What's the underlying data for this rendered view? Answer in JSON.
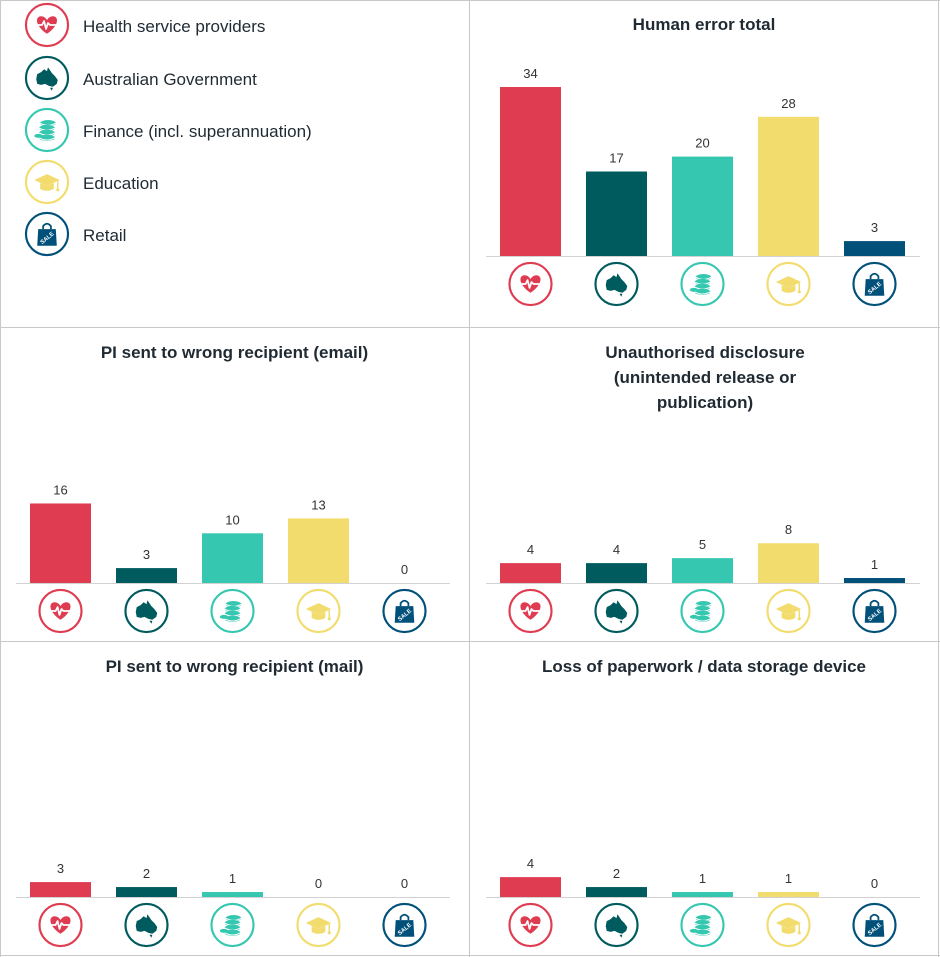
{
  "legend": [
    {
      "label": "Health service providers",
      "icon": "heart-icon",
      "color": "#e03c51"
    },
    {
      "label": "Australian Government",
      "icon": "australia-map-icon",
      "color": "#005b5e"
    },
    {
      "label": "Finance (incl. superannuation)",
      "icon": "coins-icon",
      "color": "#36c7b0"
    },
    {
      "label": "Education",
      "icon": "graduation-cap-icon",
      "color": "#f2dc6e"
    },
    {
      "label": "Retail",
      "icon": "sale-bag-icon",
      "color": "#00507a"
    }
  ],
  "chart_data": [
    {
      "type": "bar",
      "title": "Human error total",
      "categories": [
        "Health service providers",
        "Australian Government",
        "Finance (incl. superannuation)",
        "Education",
        "Retail"
      ],
      "values": [
        34,
        17,
        20,
        28,
        3
      ],
      "ylim": [
        0,
        34
      ]
    },
    {
      "type": "bar",
      "title": "PI sent to wrong recipient (email)",
      "categories": [
        "Health service providers",
        "Australian Government",
        "Finance (incl. superannuation)",
        "Education",
        "Retail"
      ],
      "values": [
        16,
        3,
        10,
        13,
        0
      ],
      "ylim": [
        0,
        34
      ]
    },
    {
      "type": "bar",
      "title": "Unauthorised disclosure (unintended release or publication)",
      "categories": [
        "Health service providers",
        "Australian Government",
        "Finance (incl. superannuation)",
        "Education",
        "Retail"
      ],
      "values": [
        4,
        4,
        5,
        8,
        1
      ],
      "ylim": [
        0,
        34
      ]
    },
    {
      "type": "bar",
      "title": "PI sent to wrong recipient (mail)",
      "categories": [
        "Health service providers",
        "Australian Government",
        "Finance (incl. superannuation)",
        "Education",
        "Retail"
      ],
      "values": [
        3,
        2,
        1,
        0,
        0
      ],
      "ylim": [
        0,
        34
      ]
    },
    {
      "type": "bar",
      "title": "Loss of paperwork / data storage device",
      "categories": [
        "Health service providers",
        "Australian Government",
        "Finance (incl. superannuation)",
        "Education",
        "Retail"
      ],
      "values": [
        4,
        2,
        1,
        1,
        0
      ],
      "ylim": [
        0,
        34
      ]
    }
  ]
}
